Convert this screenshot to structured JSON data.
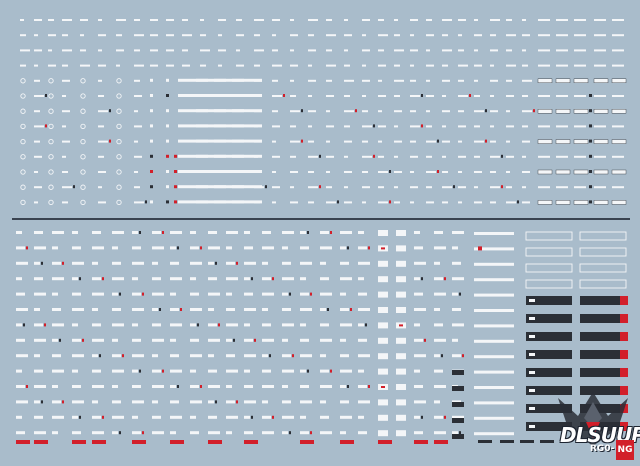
{
  "sheet": {
    "background_color": "#a9bccb",
    "decal_white": "#f4f6f8",
    "decal_red": "#d21f2a",
    "decal_dark": "#2b2f36",
    "divider_color": "#3a4350"
  },
  "watermark": {
    "brand_text": "DLSUUP",
    "sub_text": "RG0-",
    "badge_text": "NG"
  }
}
